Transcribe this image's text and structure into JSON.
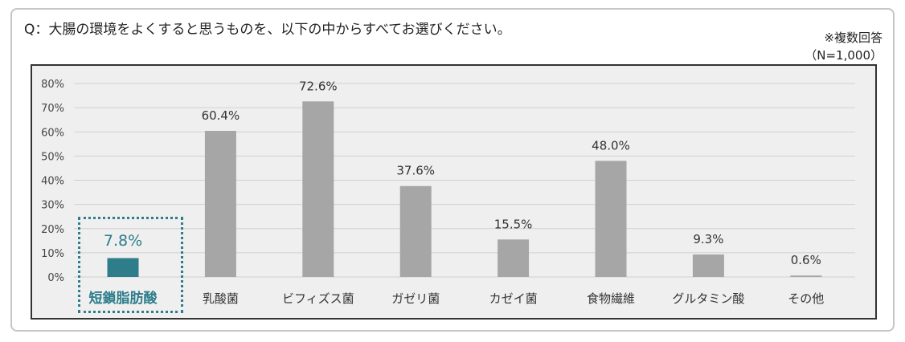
{
  "header": {
    "question": "Q：大腸の環境をよくすると思うものを、以下の中からすべてお選びください。",
    "note_multiple": "※複数回答",
    "note_n": "（N=1,000）"
  },
  "colors": {
    "bar_default": "#a6a6a6",
    "bar_highlight": "#2d7d8b",
    "label_default": "#333333",
    "label_highlight": "#2d7d8b",
    "grid": "#d0d0d0",
    "plot_bg": "#efefef"
  },
  "chart_data": {
    "type": "bar",
    "title": "",
    "xlabel": "",
    "ylabel": "",
    "ylim": [
      0,
      80
    ],
    "yticks": [
      0,
      10,
      20,
      30,
      40,
      50,
      60,
      70,
      80
    ],
    "ytick_labels": [
      "0%",
      "10%",
      "20%",
      "30%",
      "40%",
      "50%",
      "60%",
      "70%",
      "80%"
    ],
    "grid": true,
    "legend": "none",
    "highlight_index": 0,
    "categories": [
      "短鎖脂肪酸",
      "乳酸菌",
      "ビフィズス菌",
      "ガゼリ菌",
      "カゼイ菌",
      "食物繊維",
      "グルタミン酸",
      "その他"
    ],
    "values": [
      7.8,
      60.4,
      72.6,
      37.6,
      15.5,
      48.0,
      9.3,
      0.6
    ],
    "value_labels": [
      "7.8%",
      "60.4%",
      "72.6%",
      "37.6%",
      "15.5%",
      "48.0%",
      "9.3%",
      "0.6%"
    ]
  }
}
